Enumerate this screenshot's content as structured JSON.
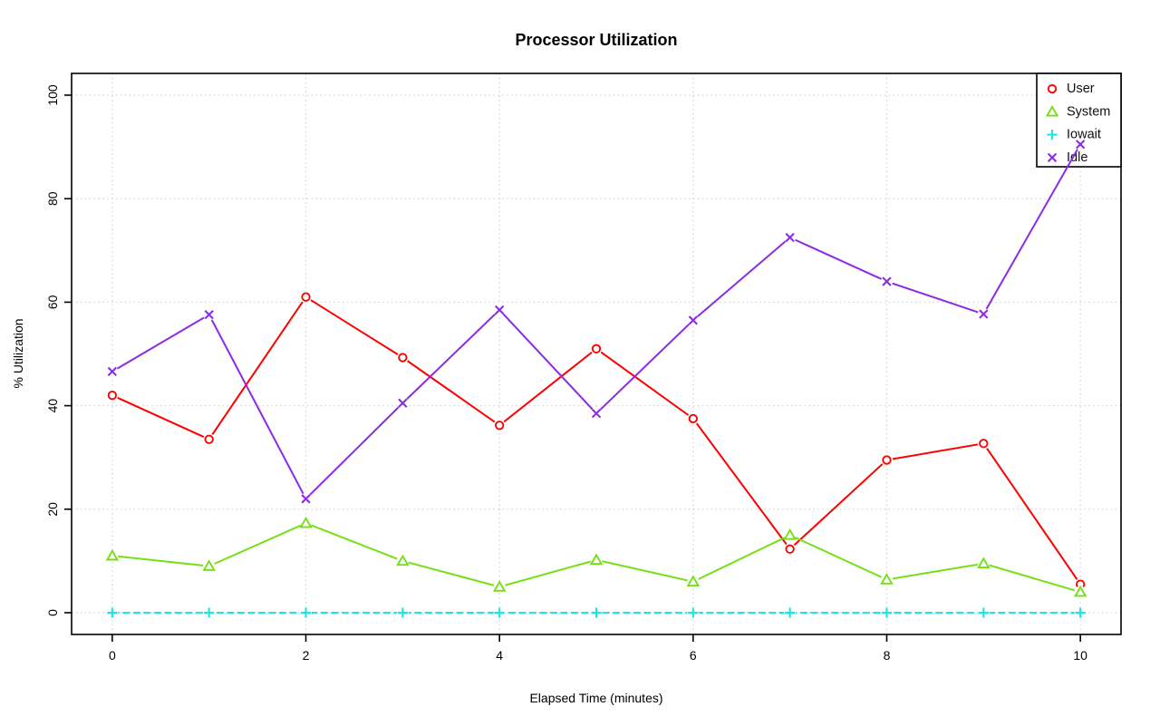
{
  "chart_data": {
    "type": "line",
    "title": "Processor Utilization",
    "xlabel": "Elapsed Time (minutes)",
    "ylabel": "% Utilization",
    "x": [
      0,
      1,
      2,
      3,
      4,
      5,
      6,
      7,
      8,
      9,
      10
    ],
    "xticks": [
      0,
      2,
      4,
      6,
      8,
      10
    ],
    "yticks": [
      0,
      20,
      40,
      60,
      80,
      100
    ],
    "xlim": [
      -0.42,
      10.42
    ],
    "ylim": [
      -4.2,
      104.2
    ],
    "grid": {
      "shown": true,
      "style": "dotted",
      "color": "#d4d4d4",
      "at": "axis-ticks"
    },
    "legend": {
      "position": "top-right",
      "border": true
    },
    "series": [
      {
        "name": "User",
        "color": "#ff0000",
        "marker": "circle",
        "line_style": "solid",
        "values": [
          42,
          33.5,
          61,
          49.3,
          36.2,
          51,
          37.5,
          12.3,
          29.5,
          32.7,
          5.5
        ]
      },
      {
        "name": "System",
        "color": "#74e013",
        "marker": "triangle",
        "line_style": "solid",
        "values": [
          11,
          9,
          17.3,
          10,
          5,
          10.2,
          6,
          15,
          6.4,
          9.5,
          4
        ]
      },
      {
        "name": "Iowait",
        "color": "#16e7e7",
        "marker": "plus",
        "line_style": "dashed",
        "values": [
          0,
          0,
          0,
          0,
          0,
          0,
          0,
          0,
          0,
          0,
          0
        ]
      },
      {
        "name": "Idle",
        "color": "#8b2be2",
        "marker": "x",
        "line_style": "solid",
        "values": [
          46.6,
          57.6,
          22,
          40.5,
          58.5,
          38.5,
          56.5,
          72.5,
          64,
          57.7,
          90.5
        ]
      }
    ]
  }
}
